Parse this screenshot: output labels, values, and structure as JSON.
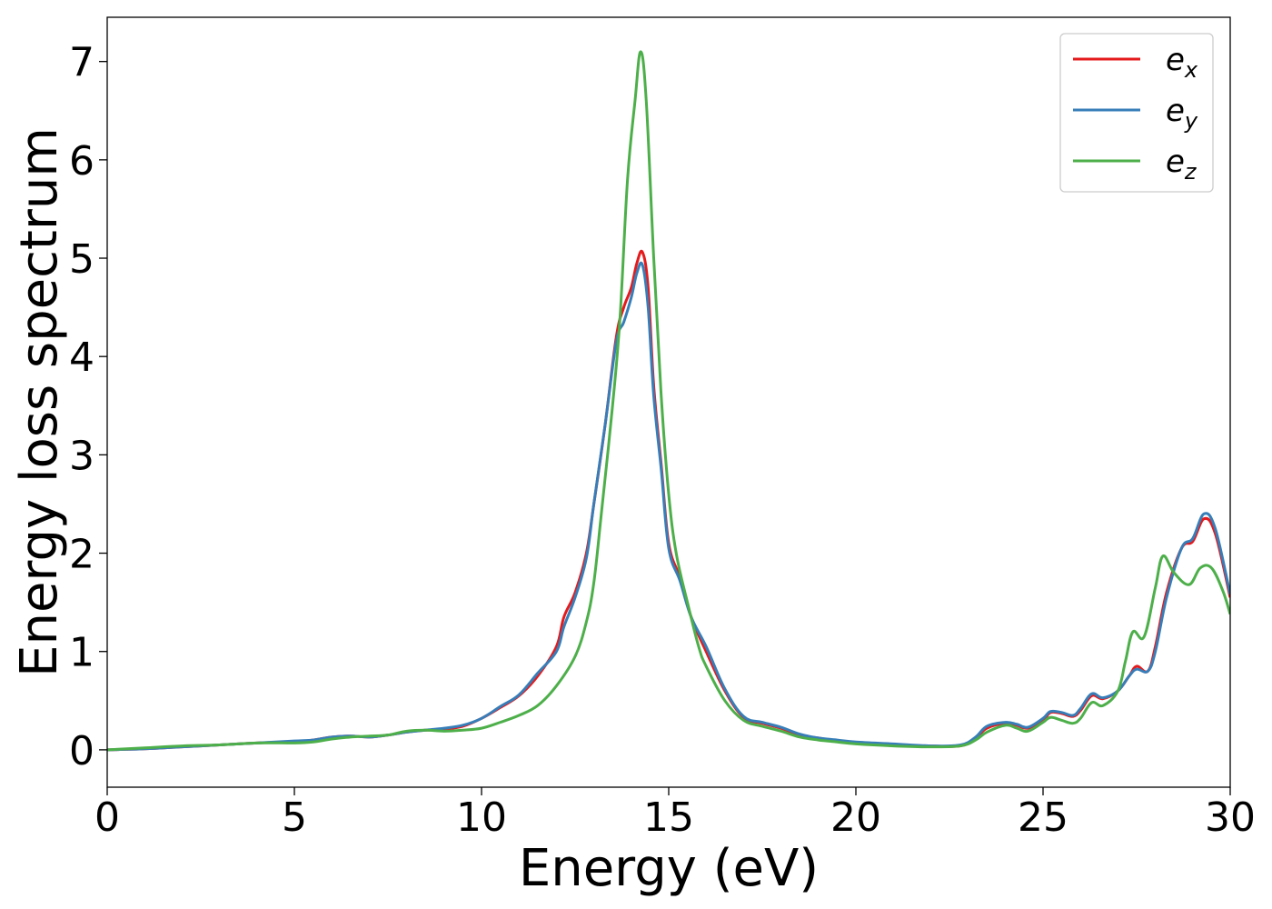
{
  "chart_data": {
    "type": "line",
    "xlabel": "Energy (eV)",
    "ylabel": "Energy loss spectrum",
    "xlim": [
      0,
      30
    ],
    "ylim": [
      -0.38,
      7.45
    ],
    "xticks": [
      0,
      5,
      10,
      15,
      20,
      25,
      30
    ],
    "yticks": [
      0,
      1,
      2,
      3,
      4,
      5,
      6,
      7
    ],
    "grid": false,
    "legend_position": "top-right",
    "series": [
      {
        "name": "e_x",
        "label_base": "e",
        "label_sub": "x",
        "color": "#e41a1c",
        "points": [
          [
            0,
            0
          ],
          [
            1,
            0.01
          ],
          [
            2,
            0.03
          ],
          [
            3,
            0.05
          ],
          [
            4,
            0.07
          ],
          [
            5,
            0.08
          ],
          [
            5.5,
            0.1
          ],
          [
            6,
            0.13
          ],
          [
            6.5,
            0.14
          ],
          [
            7,
            0.13
          ],
          [
            7.5,
            0.15
          ],
          [
            8,
            0.18
          ],
          [
            8.5,
            0.2
          ],
          [
            9,
            0.21
          ],
          [
            9.5,
            0.24
          ],
          [
            10,
            0.32
          ],
          [
            10.5,
            0.43
          ],
          [
            11,
            0.55
          ],
          [
            11.5,
            0.75
          ],
          [
            12,
            1.05
          ],
          [
            12.2,
            1.35
          ],
          [
            12.5,
            1.6
          ],
          [
            12.8,
            2.0
          ],
          [
            13,
            2.5
          ],
          [
            13.3,
            3.3
          ],
          [
            13.6,
            4.2
          ],
          [
            13.8,
            4.5
          ],
          [
            14,
            4.7
          ],
          [
            14.15,
            4.95
          ],
          [
            14.3,
            5.06
          ],
          [
            14.45,
            4.7
          ],
          [
            14.6,
            3.7
          ],
          [
            14.8,
            2.9
          ],
          [
            15,
            2.1
          ],
          [
            15.3,
            1.75
          ],
          [
            15.6,
            1.35
          ],
          [
            16,
            1.0
          ],
          [
            16.5,
            0.6
          ],
          [
            17,
            0.33
          ],
          [
            17.5,
            0.27
          ],
          [
            18,
            0.22
          ],
          [
            18.5,
            0.15
          ],
          [
            19,
            0.12
          ],
          [
            19.5,
            0.09
          ],
          [
            20,
            0.07
          ],
          [
            21,
            0.05
          ],
          [
            22,
            0.04
          ],
          [
            22.8,
            0.04
          ],
          [
            23.2,
            0.12
          ],
          [
            23.5,
            0.22
          ],
          [
            24,
            0.27
          ],
          [
            24.3,
            0.25
          ],
          [
            24.6,
            0.22
          ],
          [
            25,
            0.3
          ],
          [
            25.2,
            0.38
          ],
          [
            25.5,
            0.37
          ],
          [
            25.8,
            0.34
          ],
          [
            26,
            0.4
          ],
          [
            26.3,
            0.55
          ],
          [
            26.6,
            0.52
          ],
          [
            27,
            0.6
          ],
          [
            27.3,
            0.75
          ],
          [
            27.5,
            0.85
          ],
          [
            27.8,
            0.8
          ],
          [
            28,
            1.05
          ],
          [
            28.3,
            1.6
          ],
          [
            28.7,
            2.05
          ],
          [
            29,
            2.12
          ],
          [
            29.3,
            2.35
          ],
          [
            29.6,
            2.2
          ],
          [
            30,
            1.55
          ]
        ]
      },
      {
        "name": "e_y",
        "label_base": "e",
        "label_sub": "y",
        "color": "#377eb8",
        "points": [
          [
            0,
            0
          ],
          [
            1,
            0.01
          ],
          [
            2,
            0.03
          ],
          [
            3,
            0.05
          ],
          [
            4,
            0.07
          ],
          [
            5,
            0.09
          ],
          [
            5.5,
            0.1
          ],
          [
            6,
            0.13
          ],
          [
            6.5,
            0.14
          ],
          [
            7,
            0.13
          ],
          [
            7.5,
            0.15
          ],
          [
            8,
            0.18
          ],
          [
            8.5,
            0.2
          ],
          [
            9,
            0.22
          ],
          [
            9.5,
            0.25
          ],
          [
            10,
            0.32
          ],
          [
            10.5,
            0.44
          ],
          [
            11,
            0.56
          ],
          [
            11.5,
            0.78
          ],
          [
            12,
            1.0
          ],
          [
            12.2,
            1.25
          ],
          [
            12.5,
            1.55
          ],
          [
            12.8,
            1.95
          ],
          [
            13,
            2.5
          ],
          [
            13.3,
            3.3
          ],
          [
            13.6,
            4.15
          ],
          [
            13.8,
            4.35
          ],
          [
            14,
            4.6
          ],
          [
            14.15,
            4.85
          ],
          [
            14.3,
            4.93
          ],
          [
            14.45,
            4.5
          ],
          [
            14.6,
            3.6
          ],
          [
            14.8,
            2.85
          ],
          [
            15,
            2.05
          ],
          [
            15.3,
            1.72
          ],
          [
            15.6,
            1.35
          ],
          [
            16,
            1.05
          ],
          [
            16.5,
            0.62
          ],
          [
            17,
            0.34
          ],
          [
            17.5,
            0.28
          ],
          [
            18,
            0.23
          ],
          [
            18.5,
            0.16
          ],
          [
            19,
            0.12
          ],
          [
            19.5,
            0.1
          ],
          [
            20,
            0.08
          ],
          [
            21,
            0.06
          ],
          [
            22,
            0.04
          ],
          [
            22.8,
            0.05
          ],
          [
            23.2,
            0.13
          ],
          [
            23.5,
            0.24
          ],
          [
            24,
            0.28
          ],
          [
            24.3,
            0.26
          ],
          [
            24.6,
            0.23
          ],
          [
            25,
            0.32
          ],
          [
            25.2,
            0.39
          ],
          [
            25.5,
            0.38
          ],
          [
            25.8,
            0.35
          ],
          [
            26,
            0.42
          ],
          [
            26.3,
            0.57
          ],
          [
            26.6,
            0.53
          ],
          [
            27,
            0.6
          ],
          [
            27.3,
            0.75
          ],
          [
            27.5,
            0.82
          ],
          [
            27.8,
            0.8
          ],
          [
            28,
            1.0
          ],
          [
            28.3,
            1.55
          ],
          [
            28.7,
            2.05
          ],
          [
            29,
            2.15
          ],
          [
            29.3,
            2.4
          ],
          [
            29.6,
            2.25
          ],
          [
            30,
            1.58
          ]
        ]
      },
      {
        "name": "e_z",
        "label_base": "e",
        "label_sub": "z",
        "color": "#4daf4a",
        "points": [
          [
            0,
            0
          ],
          [
            1,
            0.02
          ],
          [
            2,
            0.04
          ],
          [
            3,
            0.05
          ],
          [
            4,
            0.07
          ],
          [
            5,
            0.07
          ],
          [
            5.5,
            0.08
          ],
          [
            6,
            0.11
          ],
          [
            6.5,
            0.13
          ],
          [
            7,
            0.14
          ],
          [
            7.5,
            0.15
          ],
          [
            8,
            0.19
          ],
          [
            8.5,
            0.2
          ],
          [
            9,
            0.19
          ],
          [
            9.5,
            0.2
          ],
          [
            10,
            0.22
          ],
          [
            10.5,
            0.28
          ],
          [
            11,
            0.35
          ],
          [
            11.5,
            0.45
          ],
          [
            12,
            0.65
          ],
          [
            12.5,
            0.95
          ],
          [
            12.8,
            1.3
          ],
          [
            13,
            1.7
          ],
          [
            13.2,
            2.4
          ],
          [
            13.5,
            3.5
          ],
          [
            13.7,
            4.4
          ],
          [
            13.9,
            5.8
          ],
          [
            14.1,
            6.6
          ],
          [
            14.25,
            7.1
          ],
          [
            14.4,
            6.6
          ],
          [
            14.6,
            5.0
          ],
          [
            14.8,
            3.6
          ],
          [
            15,
            2.6
          ],
          [
            15.2,
            2.0
          ],
          [
            15.5,
            1.5
          ],
          [
            15.8,
            1.05
          ],
          [
            16,
            0.85
          ],
          [
            16.5,
            0.5
          ],
          [
            17,
            0.3
          ],
          [
            17.5,
            0.24
          ],
          [
            18,
            0.19
          ],
          [
            18.5,
            0.13
          ],
          [
            19,
            0.1
          ],
          [
            19.5,
            0.08
          ],
          [
            20,
            0.06
          ],
          [
            21,
            0.04
          ],
          [
            22,
            0.03
          ],
          [
            22.8,
            0.04
          ],
          [
            23.2,
            0.1
          ],
          [
            23.5,
            0.18
          ],
          [
            24,
            0.25
          ],
          [
            24.3,
            0.22
          ],
          [
            24.6,
            0.19
          ],
          [
            25,
            0.28
          ],
          [
            25.2,
            0.33
          ],
          [
            25.5,
            0.3
          ],
          [
            25.8,
            0.27
          ],
          [
            26,
            0.32
          ],
          [
            26.3,
            0.48
          ],
          [
            26.6,
            0.45
          ],
          [
            27,
            0.6
          ],
          [
            27.2,
            0.9
          ],
          [
            27.4,
            1.2
          ],
          [
            27.7,
            1.15
          ],
          [
            28,
            1.65
          ],
          [
            28.2,
            1.97
          ],
          [
            28.5,
            1.8
          ],
          [
            28.9,
            1.68
          ],
          [
            29.2,
            1.85
          ],
          [
            29.5,
            1.85
          ],
          [
            29.8,
            1.62
          ],
          [
            30,
            1.38
          ]
        ]
      }
    ]
  }
}
